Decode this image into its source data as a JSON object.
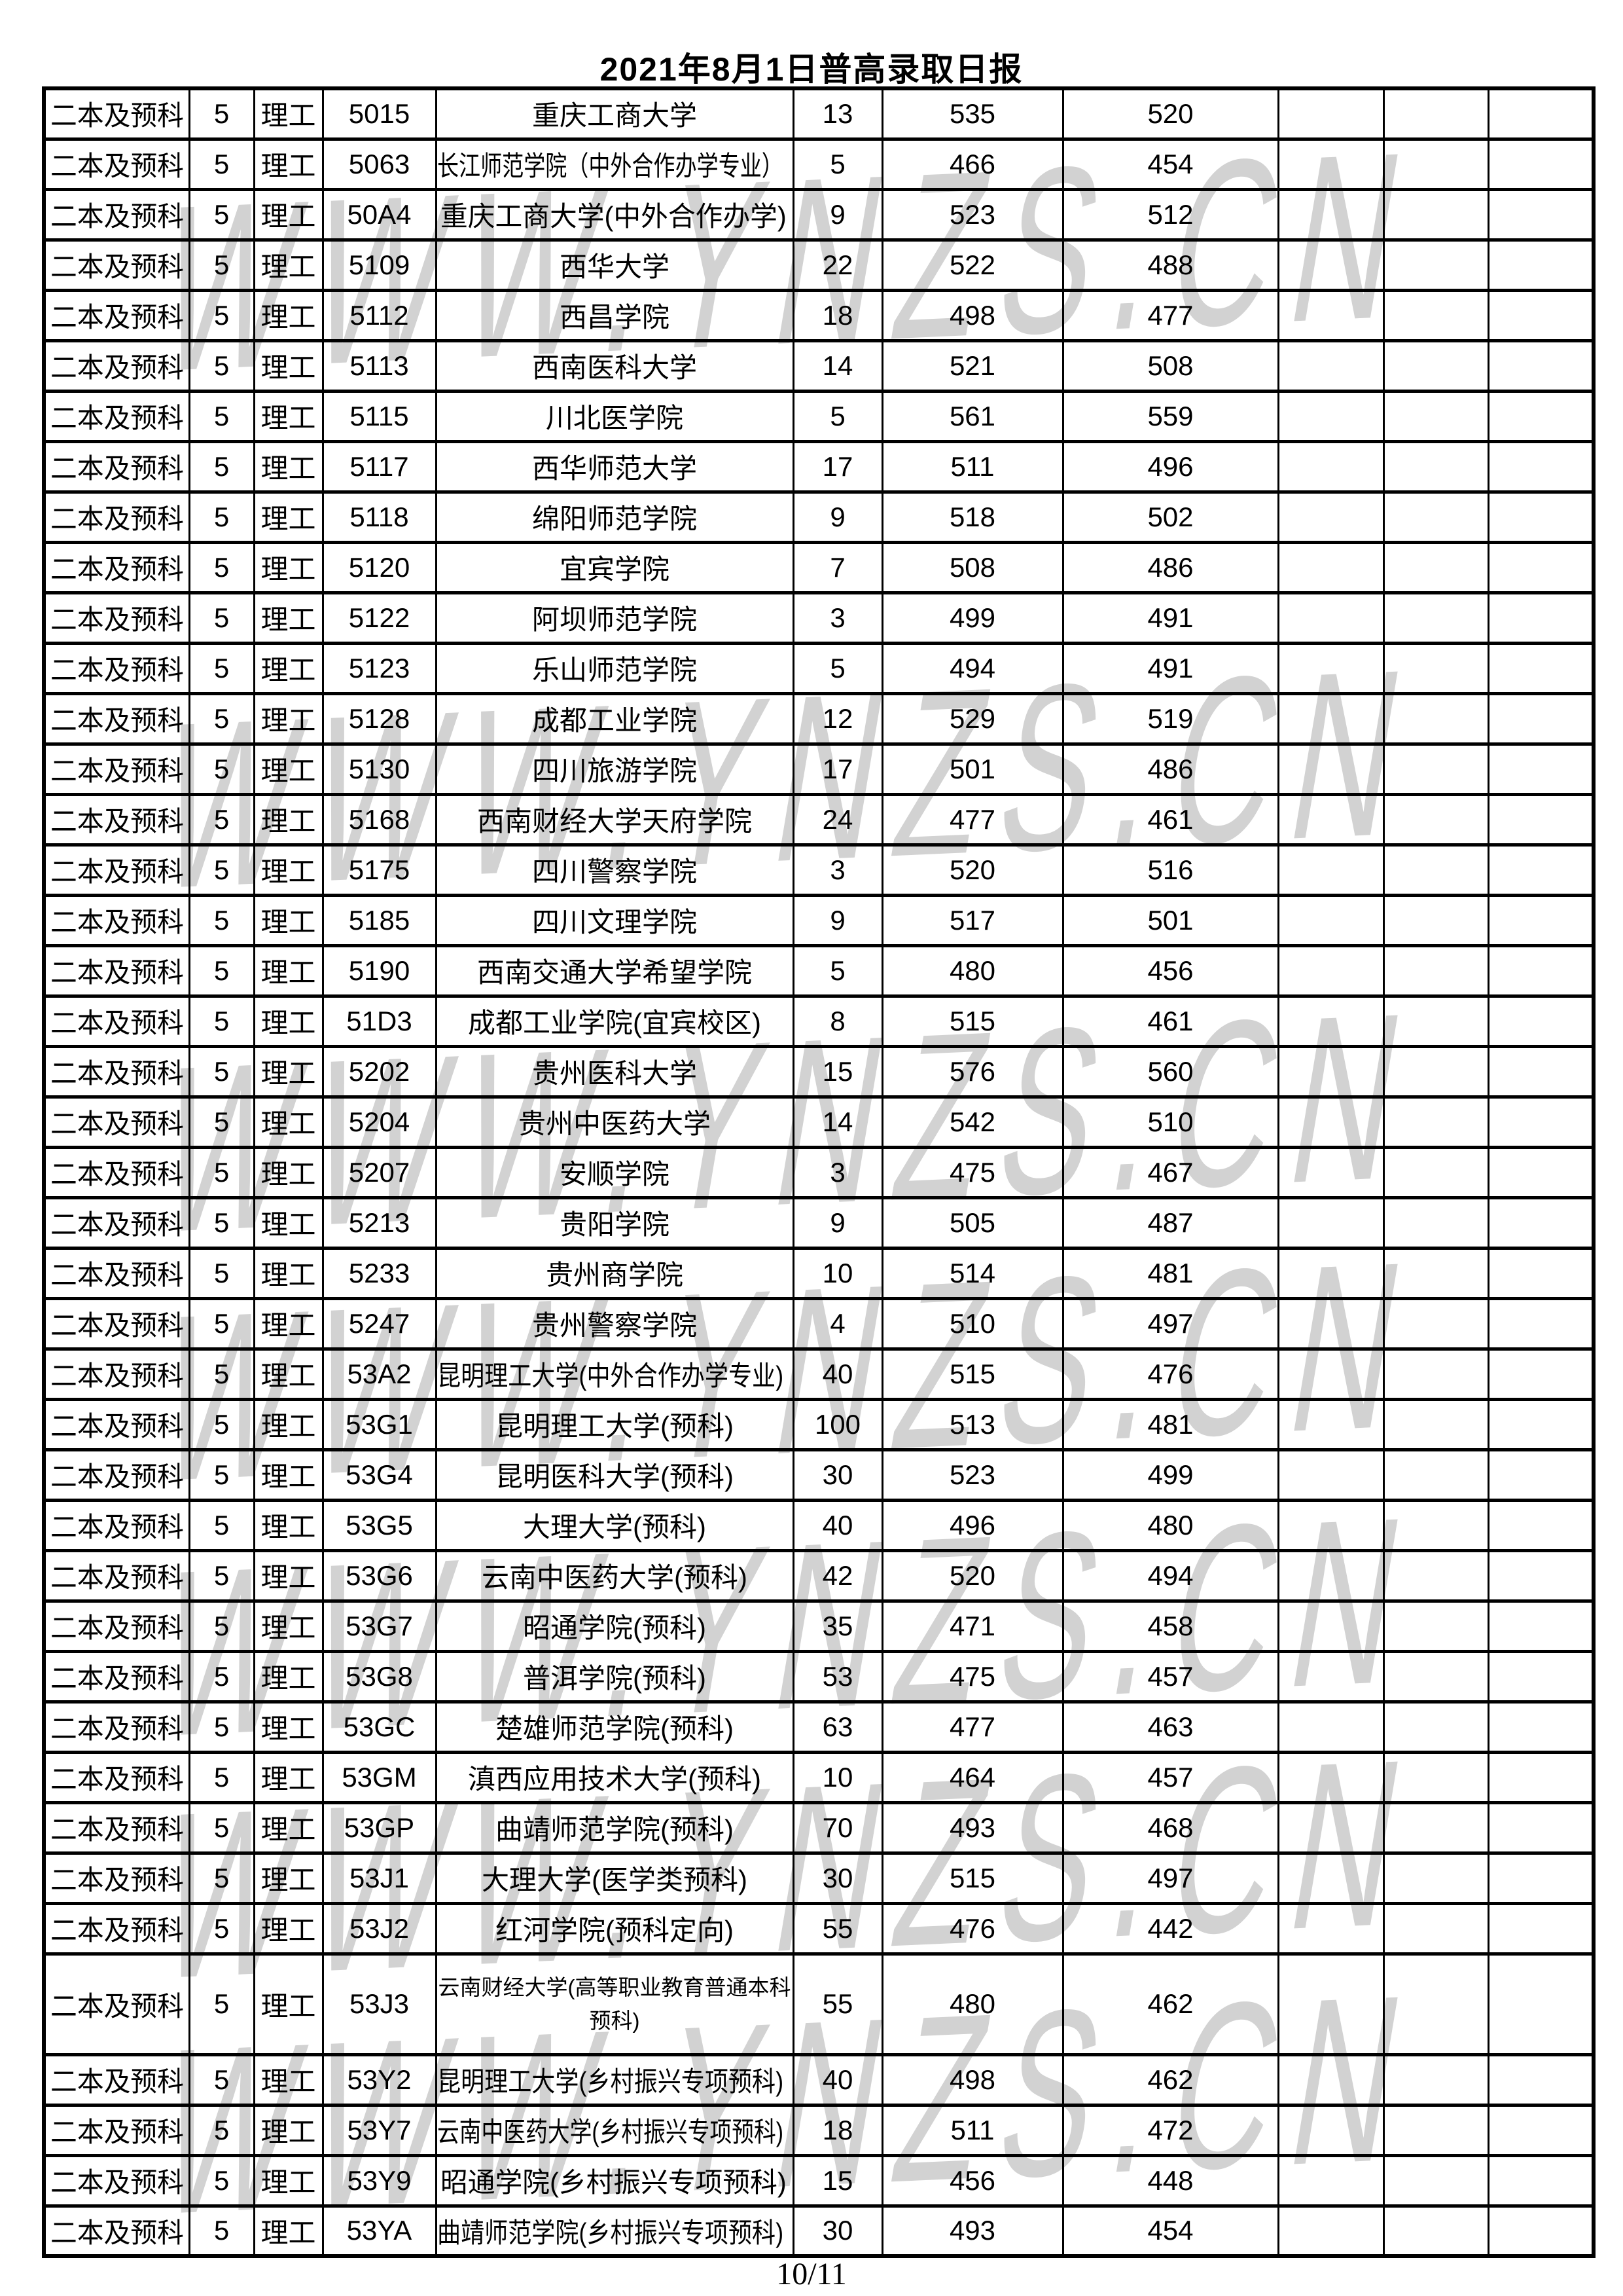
{
  "title": "2021年8月1日普高录取日报",
  "watermark": {
    "text": "WWW.YNZS.CN",
    "color": "#d2d2d2"
  },
  "footer": {
    "page_number": "10/11"
  },
  "table": {
    "repeated": {
      "batch": "二本及预科",
      "plan_num": "5",
      "category": "理工"
    },
    "rows": [
      {
        "code": "5015",
        "name": "重庆工商大学",
        "count": "13",
        "max": "535",
        "min": "520"
      },
      {
        "code": "5063",
        "name": "长江师范学院（中外合作办学专业）",
        "count": "5",
        "max": "466",
        "min": "454"
      },
      {
        "code": "50A4",
        "name": "重庆工商大学(中外合作办学)",
        "count": "9",
        "max": "523",
        "min": "512"
      },
      {
        "code": "5109",
        "name": "西华大学",
        "count": "22",
        "max": "522",
        "min": "488"
      },
      {
        "code": "5112",
        "name": "西昌学院",
        "count": "18",
        "max": "498",
        "min": "477"
      },
      {
        "code": "5113",
        "name": "西南医科大学",
        "count": "14",
        "max": "521",
        "min": "508"
      },
      {
        "code": "5115",
        "name": "川北医学院",
        "count": "5",
        "max": "561",
        "min": "559"
      },
      {
        "code": "5117",
        "name": "西华师范大学",
        "count": "17",
        "max": "511",
        "min": "496"
      },
      {
        "code": "5118",
        "name": "绵阳师范学院",
        "count": "9",
        "max": "518",
        "min": "502"
      },
      {
        "code": "5120",
        "name": "宜宾学院",
        "count": "7",
        "max": "508",
        "min": "486"
      },
      {
        "code": "5122",
        "name": "阿坝师范学院",
        "count": "3",
        "max": "499",
        "min": "491"
      },
      {
        "code": "5123",
        "name": "乐山师范学院",
        "count": "5",
        "max": "494",
        "min": "491"
      },
      {
        "code": "5128",
        "name": "成都工业学院",
        "count": "12",
        "max": "529",
        "min": "519"
      },
      {
        "code": "5130",
        "name": "四川旅游学院",
        "count": "17",
        "max": "501",
        "min": "486"
      },
      {
        "code": "5168",
        "name": "西南财经大学天府学院",
        "count": "24",
        "max": "477",
        "min": "461"
      },
      {
        "code": "5175",
        "name": "四川警察学院",
        "count": "3",
        "max": "520",
        "min": "516"
      },
      {
        "code": "5185",
        "name": "四川文理学院",
        "count": "9",
        "max": "517",
        "min": "501"
      },
      {
        "code": "5190",
        "name": "西南交通大学希望学院",
        "count": "5",
        "max": "480",
        "min": "456"
      },
      {
        "code": "51D3",
        "name": "成都工业学院(宜宾校区)",
        "count": "8",
        "max": "515",
        "min": "461"
      },
      {
        "code": "5202",
        "name": "贵州医科大学",
        "count": "15",
        "max": "576",
        "min": "560"
      },
      {
        "code": "5204",
        "name": "贵州中医药大学",
        "count": "14",
        "max": "542",
        "min": "510"
      },
      {
        "code": "5207",
        "name": "安顺学院",
        "count": "3",
        "max": "475",
        "min": "467"
      },
      {
        "code": "5213",
        "name": "贵阳学院",
        "count": "9",
        "max": "505",
        "min": "487"
      },
      {
        "code": "5233",
        "name": "贵州商学院",
        "count": "10",
        "max": "514",
        "min": "481"
      },
      {
        "code": "5247",
        "name": "贵州警察学院",
        "count": "4",
        "max": "510",
        "min": "497"
      },
      {
        "code": "53A2",
        "name": "昆明理工大学(中外合作办学专业)",
        "count": "40",
        "max": "515",
        "min": "476"
      },
      {
        "code": "53G1",
        "name": "昆明理工大学(预科)",
        "count": "100",
        "max": "513",
        "min": "481"
      },
      {
        "code": "53G4",
        "name": "昆明医科大学(预科)",
        "count": "30",
        "max": "523",
        "min": "499"
      },
      {
        "code": "53G5",
        "name": "大理大学(预科)",
        "count": "40",
        "max": "496",
        "min": "480"
      },
      {
        "code": "53G6",
        "name": "云南中医药大学(预科)",
        "count": "42",
        "max": "520",
        "min": "494"
      },
      {
        "code": "53G7",
        "name": "昭通学院(预科)",
        "count": "35",
        "max": "471",
        "min": "458"
      },
      {
        "code": "53G8",
        "name": "普洱学院(预科)",
        "count": "53",
        "max": "475",
        "min": "457"
      },
      {
        "code": "53GC",
        "name": "楚雄师范学院(预科)",
        "count": "63",
        "max": "477",
        "min": "463"
      },
      {
        "code": "53GM",
        "name": "滇西应用技术大学(预科)",
        "count": "10",
        "max": "464",
        "min": "457"
      },
      {
        "code": "53GP",
        "name": "曲靖师范学院(预科)",
        "count": "70",
        "max": "493",
        "min": "468"
      },
      {
        "code": "53J1",
        "name": "大理大学(医学类预科)",
        "count": "30",
        "max": "515",
        "min": "497"
      },
      {
        "code": "53J2",
        "name": "红河学院(预科定向)",
        "count": "55",
        "max": "476",
        "min": "442"
      },
      {
        "code": "53J3",
        "name": "云南财经大学(高等职业教育普通本科预科)",
        "count": "55",
        "max": "480",
        "min": "462",
        "wrap": true
      },
      {
        "code": "53Y2",
        "name": "昆明理工大学(乡村振兴专项预科)",
        "count": "40",
        "max": "498",
        "min": "462"
      },
      {
        "code": "53Y7",
        "name": "云南中医药大学(乡村振兴专项预科)",
        "count": "18",
        "max": "511",
        "min": "472"
      },
      {
        "code": "53Y9",
        "name": "昭通学院(乡村振兴专项预科)",
        "count": "15",
        "max": "456",
        "min": "448"
      },
      {
        "code": "53YA",
        "name": "曲靖师范学院(乡村振兴专项预科)",
        "count": "30",
        "max": "493",
        "min": "454"
      }
    ]
  }
}
